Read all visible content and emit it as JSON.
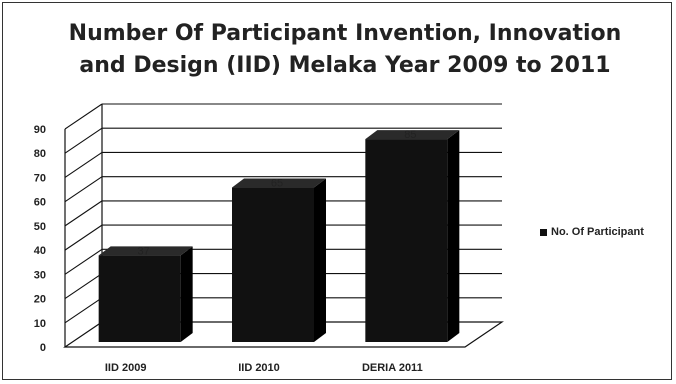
{
  "chart_data": {
    "type": "bar",
    "title_line1": "Number Of Participant Invention, Innovation",
    "title_line2": "and Design (IID) Melaka Year 2009 to 2011",
    "categories": [
      "IID 2009",
      "IID 2010",
      "DERIA 2011"
    ],
    "series": [
      {
        "name": "No. Of Participant",
        "values": [
          37,
          65,
          85
        ]
      }
    ],
    "yticks": [
      "0",
      "10",
      "20",
      "30",
      "40",
      "50",
      "60",
      "70",
      "80",
      "90"
    ],
    "ylim": [
      0,
      90
    ],
    "grid": true,
    "legend": "right",
    "colors": {
      "bar": "#111111",
      "bar_side": "#000000",
      "bar_top": "#2a2a2a",
      "grid": "#111111"
    }
  }
}
